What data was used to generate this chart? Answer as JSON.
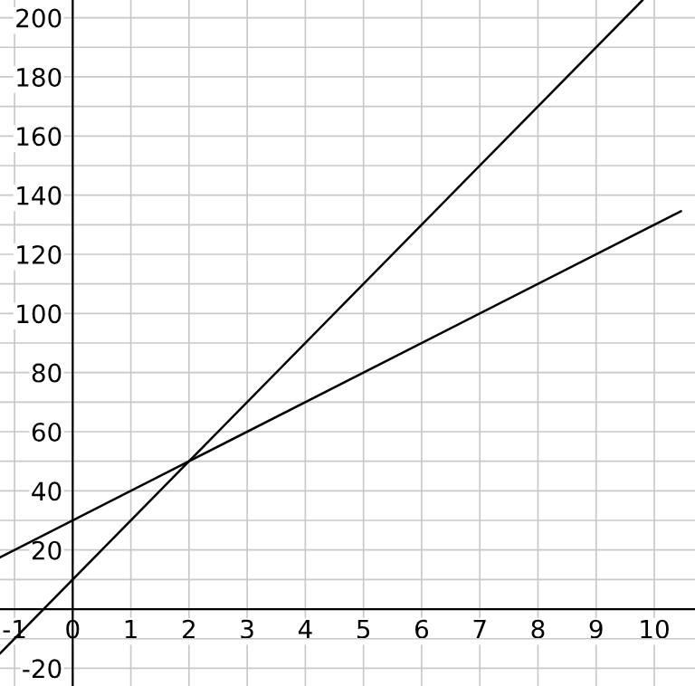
{
  "chart_data": {
    "type": "line",
    "xlim": [
      -1.25,
      10.7
    ],
    "ylim": [
      -26,
      206
    ],
    "xticks": [
      -1,
      {
        "value": 0,
        "label": "0"
      },
      1,
      2,
      3,
      4,
      5,
      6,
      7,
      8,
      9,
      10
    ],
    "yticks": [
      -20,
      {
        "value": -10,
        "label": null
      },
      {
        "value": 0,
        "label": null
      },
      {
        "value": 10,
        "label": null
      },
      20,
      {
        "value": 30,
        "label": null
      },
      40,
      {
        "value": 50,
        "label": null
      },
      60,
      {
        "value": 70,
        "label": null
      },
      80,
      {
        "value": 90,
        "label": null
      },
      100,
      {
        "value": 110,
        "label": null
      },
      120,
      {
        "value": 130,
        "label": null
      },
      140,
      {
        "value": 150,
        "label": null
      },
      160,
      {
        "value": 170,
        "label": null
      },
      180,
      {
        "value": 190,
        "label": null
      },
      200
    ],
    "grid": true,
    "series": [
      {
        "color": "#000000",
        "x": [
          -1.25,
          2,
          10.46
        ],
        "values": [
          17.5,
          50,
          134.6
        ]
      },
      {
        "color": "#000000",
        "x": [
          -1.25,
          2,
          9.8
        ],
        "values": [
          -15,
          50,
          206
        ]
      }
    ]
  }
}
